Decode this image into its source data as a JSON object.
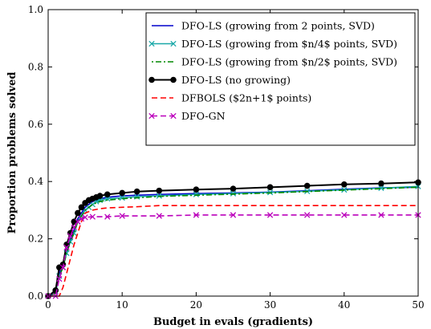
{
  "chart_data": {
    "type": "line",
    "title": "",
    "xlabel": "Budget in evals (gradients)",
    "ylabel": "Proportion problems solved",
    "xlim": [
      0,
      50
    ],
    "ylim": [
      0.0,
      1.0
    ],
    "xticks": [
      0,
      10,
      20,
      30,
      40,
      50
    ],
    "yticks": [
      0.0,
      0.2,
      0.4,
      0.6,
      0.8,
      1.0
    ],
    "xtick_labels": [
      "0",
      "10",
      "20",
      "30",
      "40",
      "50"
    ],
    "ytick_labels": [
      "0.0",
      "0.2",
      "0.4",
      "0.6",
      "0.8",
      "1.0"
    ],
    "grid": false,
    "legend_position": "top-right",
    "series": [
      {
        "name": "DFO-LS (growing from 2 points, SVD)",
        "color": "#0000cc",
        "dash": "solid",
        "marker": "none",
        "x": [
          0,
          1,
          1.5,
          2,
          2.5,
          3,
          3.5,
          4,
          4.5,
          5,
          5.5,
          6,
          6.5,
          7,
          8,
          10,
          12,
          15,
          20,
          25,
          30,
          35,
          40,
          45,
          50
        ],
        "y": [
          0.0,
          0.01,
          0.08,
          0.11,
          0.16,
          0.2,
          0.23,
          0.27,
          0.29,
          0.31,
          0.32,
          0.33,
          0.335,
          0.34,
          0.345,
          0.35,
          0.352,
          0.355,
          0.358,
          0.36,
          0.363,
          0.368,
          0.373,
          0.378,
          0.38
        ]
      },
      {
        "name": "DFO-LS (growing from $n/4$ points, SVD)",
        "color": "#1aa8a8",
        "dash": "solid",
        "marker": "x",
        "x": [
          0,
          1,
          1.5,
          2,
          2.5,
          3,
          3.5,
          4,
          4.5,
          5,
          5.5,
          6,
          6.5,
          7,
          8,
          10,
          12,
          15,
          20,
          25,
          30,
          35,
          40,
          45,
          50
        ],
        "y": [
          0.0,
          0.015,
          0.07,
          0.1,
          0.15,
          0.19,
          0.22,
          0.26,
          0.28,
          0.3,
          0.31,
          0.32,
          0.33,
          0.335,
          0.34,
          0.343,
          0.347,
          0.35,
          0.355,
          0.358,
          0.362,
          0.366,
          0.371,
          0.377,
          0.383
        ]
      },
      {
        "name": "DFO-LS (growing from $n/2$ points, SVD)",
        "color": "#008800",
        "dash": "dashdot",
        "marker": "none",
        "x": [
          0,
          1,
          1.5,
          2,
          2.5,
          3,
          3.5,
          4,
          4.5,
          5,
          5.5,
          6,
          6.5,
          7,
          8,
          10,
          12,
          15,
          20,
          25,
          30,
          35,
          40,
          45,
          50
        ],
        "y": [
          0.0,
          0.01,
          0.07,
          0.1,
          0.15,
          0.19,
          0.22,
          0.26,
          0.28,
          0.3,
          0.31,
          0.32,
          0.325,
          0.33,
          0.335,
          0.34,
          0.343,
          0.348,
          0.352,
          0.356,
          0.36,
          0.365,
          0.37,
          0.375,
          0.38
        ]
      },
      {
        "name": "DFO-LS (no growing)",
        "color": "#000000",
        "dash": "solid",
        "marker": "o",
        "x": [
          0,
          1,
          1.5,
          2,
          2.5,
          3,
          3.5,
          4,
          4.5,
          5,
          5.5,
          6,
          6.5,
          7,
          8,
          10,
          12,
          15,
          20,
          25,
          30,
          35,
          40,
          45,
          50
        ],
        "y": [
          0.0,
          0.02,
          0.1,
          0.11,
          0.18,
          0.22,
          0.26,
          0.29,
          0.31,
          0.325,
          0.335,
          0.34,
          0.345,
          0.35,
          0.355,
          0.36,
          0.365,
          0.368,
          0.372,
          0.375,
          0.38,
          0.385,
          0.39,
          0.393,
          0.397
        ]
      },
      {
        "name": "DFBOLS ($2n+1$ points)",
        "color": "#ff0000",
        "dash": "dashed",
        "marker": "none",
        "x": [
          0,
          1.5,
          2,
          2.5,
          3,
          3.5,
          4,
          4.5,
          5,
          6,
          7,
          8,
          10,
          12,
          15,
          20,
          30,
          40,
          50
        ],
        "y": [
          0.0,
          0.0,
          0.03,
          0.08,
          0.13,
          0.18,
          0.22,
          0.26,
          0.29,
          0.3,
          0.305,
          0.308,
          0.31,
          0.312,
          0.316,
          0.316,
          0.316,
          0.316,
          0.316
        ]
      },
      {
        "name": "DFO-GN",
        "color": "#bb00bb",
        "dash": "dashed",
        "marker": "x",
        "x": [
          0,
          1,
          1.5,
          2,
          2.5,
          3,
          3.5,
          4,
          4.5,
          5,
          6,
          8,
          10,
          15,
          20,
          25,
          30,
          35,
          40,
          45,
          50
        ],
        "y": [
          0.0,
          0.0,
          0.06,
          0.1,
          0.17,
          0.21,
          0.24,
          0.26,
          0.27,
          0.275,
          0.277,
          0.277,
          0.28,
          0.28,
          0.283,
          0.283,
          0.283,
          0.283,
          0.283,
          0.283,
          0.283
        ]
      }
    ]
  }
}
